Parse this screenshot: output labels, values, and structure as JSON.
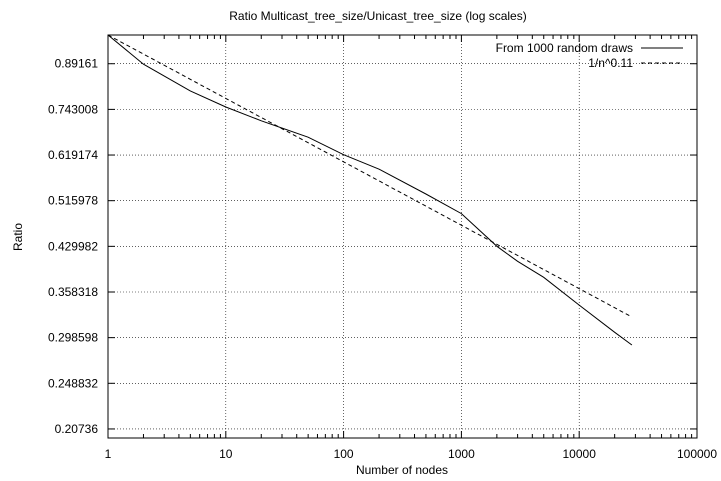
{
  "chart_data": {
    "type": "line",
    "title": "Ratio Multicast_tree_size/Unicast_tree_size (log scales)",
    "xlabel": "Number of nodes",
    "ylabel": "Ratio",
    "x_scale": "log",
    "y_scale": "log",
    "xlim": [
      1,
      100000
    ],
    "ylim": [
      0.2,
      1.0
    ],
    "grid": true,
    "legend_position": "top-right",
    "x_ticks": [
      {
        "value": 1,
        "label": "1"
      },
      {
        "value": 10,
        "label": "10"
      },
      {
        "value": 100,
        "label": "100"
      },
      {
        "value": 1000,
        "label": "1000"
      },
      {
        "value": 10000,
        "label": "10000"
      },
      {
        "value": 100000,
        "label": "100000"
      }
    ],
    "y_ticks": [
      {
        "value": 0.20736,
        "label": "0.20736"
      },
      {
        "value": 0.248832,
        "label": "0.248832"
      },
      {
        "value": 0.298598,
        "label": "0.298598"
      },
      {
        "value": 0.358318,
        "label": "0.358318"
      },
      {
        "value": 0.429982,
        "label": "0.429982"
      },
      {
        "value": 0.515978,
        "label": "0.515978"
      },
      {
        "value": 0.619174,
        "label": "0.619174"
      },
      {
        "value": 0.743008,
        "label": "0.743008"
      },
      {
        "value": 0.89161,
        "label": "0.89161"
      }
    ],
    "series": [
      {
        "name": "From 1000 random draws",
        "style": "solid",
        "color": "#000000",
        "x": [
          1,
          2,
          5,
          10,
          20,
          50,
          100,
          200,
          500,
          1000,
          2000,
          3000,
          5000,
          10000,
          20000,
          28000
        ],
        "y": [
          1.0,
          0.89,
          0.8,
          0.75,
          0.71,
          0.665,
          0.62,
          0.585,
          0.53,
          0.49,
          0.43,
          0.405,
          0.38,
          0.34,
          0.305,
          0.29
        ]
      },
      {
        "name": "1/n^0.11",
        "style": "dashed",
        "color": "#000000",
        "x": [
          1,
          28000
        ],
        "exponent": 0.11
      }
    ]
  }
}
